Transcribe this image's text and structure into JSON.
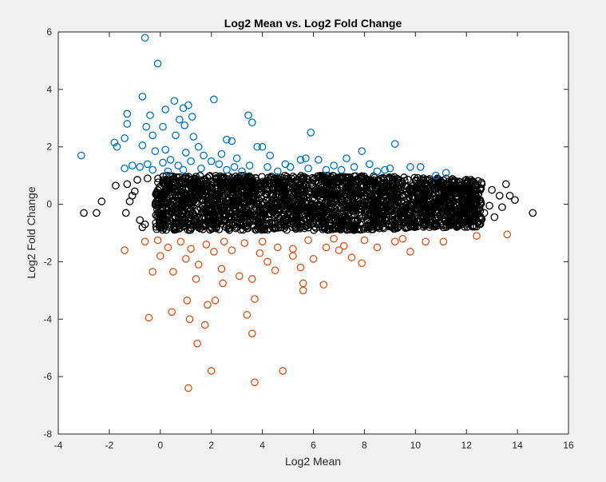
{
  "chart_data": {
    "type": "scatter",
    "title": "Log2 Mean vs. Log2 Fold Change",
    "xlabel": "Log2 Mean",
    "ylabel": "Log2 Fold Change",
    "xlim": [
      -4,
      16
    ],
    "ylim": [
      -8,
      6
    ],
    "xticks": [
      -4,
      -2,
      0,
      2,
      4,
      6,
      8,
      10,
      12,
      14,
      16
    ],
    "yticks": [
      -8,
      -6,
      -4,
      -2,
      0,
      2,
      4,
      6
    ],
    "grid": false,
    "legend": "none",
    "colors": {
      "up": "#0072BD",
      "down": "#D95319",
      "neutral": "#000000",
      "axes_bg": "#ffffff",
      "figure_bg": "#f0f0f0"
    },
    "series": [
      {
        "color": "#0072BD",
        "points": [
          [
            -0.6,
            5.8
          ],
          [
            -0.1,
            4.9
          ],
          [
            -0.7,
            3.75
          ],
          [
            2.1,
            3.65
          ],
          [
            0.55,
            3.6
          ],
          [
            1.1,
            3.45
          ],
          [
            0.9,
            3.35
          ],
          [
            0.2,
            3.3
          ],
          [
            -1.3,
            3.15
          ],
          [
            3.45,
            3.1
          ],
          [
            -0.4,
            3.1
          ],
          [
            1.25,
            3.05
          ],
          [
            0.75,
            2.95
          ],
          [
            3.6,
            2.85
          ],
          [
            -1.3,
            2.8
          ],
          [
            0.1,
            2.7
          ],
          [
            -0.55,
            2.7
          ],
          [
            0.95,
            2.75
          ],
          [
            5.9,
            2.5
          ],
          [
            -0.3,
            2.4
          ],
          [
            0.6,
            2.4
          ],
          [
            1.3,
            2.35
          ],
          [
            -1.4,
            2.3
          ],
          [
            2.8,
            2.2
          ],
          [
            2.6,
            2.25
          ],
          [
            -1.8,
            2.15
          ],
          [
            9.2,
            2.1
          ],
          [
            -1.7,
            2.0
          ],
          [
            3.8,
            2.0
          ],
          [
            4.0,
            2.0
          ],
          [
            -0.7,
            2.05
          ],
          [
            7.9,
            1.85
          ],
          [
            1.5,
            2.0
          ],
          [
            -3.1,
            1.7
          ],
          [
            2.4,
            1.75
          ],
          [
            4.3,
            1.7
          ],
          [
            6.2,
            1.55
          ],
          [
            7.3,
            1.6
          ],
          [
            5.7,
            1.6
          ],
          [
            5.5,
            1.55
          ],
          [
            0.2,
            1.9
          ],
          [
            -0.2,
            1.85
          ],
          [
            1.0,
            1.8
          ],
          [
            1.7,
            1.7
          ],
          [
            3.0,
            1.6
          ],
          [
            0.4,
            1.55
          ],
          [
            2.0,
            1.5
          ],
          [
            4.9,
            1.4
          ],
          [
            8.2,
            1.4
          ],
          [
            6.8,
            1.35
          ],
          [
            7.6,
            1.3
          ],
          [
            9.0,
            1.25
          ],
          [
            9.8,
            1.3
          ],
          [
            10.2,
            1.3
          ],
          [
            8.8,
            1.2
          ],
          [
            11.2,
            1.1
          ],
          [
            10.8,
            1.0
          ],
          [
            -1.1,
            1.35
          ],
          [
            -0.8,
            1.3
          ],
          [
            -0.5,
            1.4
          ],
          [
            0.1,
            1.45
          ],
          [
            0.7,
            1.35
          ],
          [
            1.2,
            1.5
          ],
          [
            2.3,
            1.4
          ],
          [
            2.9,
            1.3
          ],
          [
            3.5,
            1.35
          ],
          [
            4.2,
            1.3
          ],
          [
            5.1,
            1.3
          ],
          [
            5.8,
            1.25
          ],
          [
            6.5,
            1.2
          ],
          [
            7.1,
            1.2
          ],
          [
            8.5,
            1.15
          ],
          [
            -1.4,
            1.25
          ],
          [
            -0.3,
            1.2
          ],
          [
            0.3,
            1.15
          ],
          [
            0.9,
            1.2
          ],
          [
            1.6,
            1.25
          ],
          [
            2.6,
            1.2
          ],
          [
            3.2,
            1.15
          ],
          [
            4.6,
            1.15
          ]
        ]
      },
      {
        "color": "#D95319",
        "points": [
          [
            1.1,
            -6.4
          ],
          [
            3.7,
            -6.2
          ],
          [
            2.0,
            -5.8
          ],
          [
            4.8,
            -5.8
          ],
          [
            1.45,
            -4.85
          ],
          [
            3.6,
            -4.5
          ],
          [
            1.75,
            -4.2
          ],
          [
            1.15,
            -4.0
          ],
          [
            -0.45,
            -3.95
          ],
          [
            3.4,
            -3.85
          ],
          [
            0.45,
            -3.75
          ],
          [
            1.85,
            -3.5
          ],
          [
            1.05,
            -3.35
          ],
          [
            2.15,
            -3.35
          ],
          [
            3.7,
            -3.3
          ],
          [
            5.6,
            -3.0
          ],
          [
            5.6,
            -2.75
          ],
          [
            6.4,
            -2.8
          ],
          [
            2.45,
            -2.75
          ],
          [
            1.4,
            -2.6
          ],
          [
            3.1,
            -2.5
          ],
          [
            3.6,
            -2.6
          ],
          [
            0.5,
            -2.35
          ],
          [
            -0.3,
            -2.35
          ],
          [
            2.4,
            -2.25
          ],
          [
            1.5,
            -2.1
          ],
          [
            5.5,
            -2.2
          ],
          [
            6.0,
            -1.9
          ],
          [
            4.2,
            -2.0
          ],
          [
            7.9,
            -2.05
          ],
          [
            7.5,
            -1.85
          ],
          [
            9.8,
            -1.65
          ],
          [
            -1.4,
            -1.6
          ],
          [
            13.6,
            -1.05
          ],
          [
            12.4,
            -1.1
          ],
          [
            11.1,
            -1.3
          ],
          [
            10.4,
            -1.3
          ],
          [
            9.2,
            -1.3
          ],
          [
            8.5,
            -1.5
          ],
          [
            7.0,
            -1.6
          ],
          [
            6.5,
            -1.5
          ],
          [
            5.2,
            -1.55
          ],
          [
            4.6,
            -1.5
          ],
          [
            3.9,
            -1.7
          ],
          [
            2.8,
            -1.6
          ],
          [
            2.1,
            -1.65
          ],
          [
            1.2,
            -1.55
          ],
          [
            0.3,
            -1.5
          ],
          [
            -0.6,
            -1.3
          ],
          [
            -0.1,
            -1.25
          ],
          [
            0.8,
            -1.3
          ],
          [
            1.8,
            -1.4
          ],
          [
            2.5,
            -1.3
          ],
          [
            3.3,
            -1.35
          ],
          [
            4.0,
            -1.3
          ],
          [
            5.8,
            -1.25
          ],
          [
            6.8,
            -1.2
          ],
          [
            8.0,
            -1.25
          ],
          [
            0.0,
            -1.8
          ],
          [
            1.0,
            -1.9
          ],
          [
            4.5,
            -2.3
          ],
          [
            5.2,
            -1.8
          ],
          [
            7.2,
            -1.45
          ],
          [
            9.5,
            -1.2
          ]
        ]
      },
      {
        "color": "#000000",
        "points": [
          [
            -3.0,
            -0.3
          ],
          [
            -2.5,
            -0.3
          ],
          [
            -2.3,
            0.1
          ],
          [
            -1.75,
            0.65
          ],
          [
            -1.3,
            0.7
          ],
          [
            -1.35,
            -0.3
          ],
          [
            -1.1,
            0.3
          ],
          [
            -0.9,
            0.85
          ],
          [
            14.6,
            -0.3
          ],
          [
            13.9,
            0.15
          ],
          [
            13.7,
            0.3
          ],
          [
            13.55,
            0.7
          ],
          [
            13.3,
            0.3
          ],
          [
            12.6,
            0.7
          ],
          [
            13.1,
            -0.45
          ],
          [
            12.9,
            -0.05
          ],
          [
            12.2,
            -0.6
          ],
          [
            11.6,
            -0.75
          ],
          [
            12.0,
            0.6
          ],
          [
            11.8,
            0.3
          ],
          [
            10.8,
            -0.65
          ],
          [
            -0.7,
            -0.8
          ],
          [
            -0.8,
            -0.55
          ],
          [
            -1.0,
            0.45
          ],
          [
            -1.2,
            0.1
          ],
          [
            13.0,
            0.5
          ],
          [
            12.4,
            0.2
          ],
          [
            12.7,
            -0.3
          ],
          [
            13.4,
            -0.1
          ],
          [
            11.4,
            0.55
          ],
          [
            -0.5,
            0.9
          ],
          [
            -0.6,
            -0.7
          ]
        ]
      }
    ],
    "dense_core": "black circles densely filling x 0 to 12.5, y -0.9 to 1.0"
  }
}
